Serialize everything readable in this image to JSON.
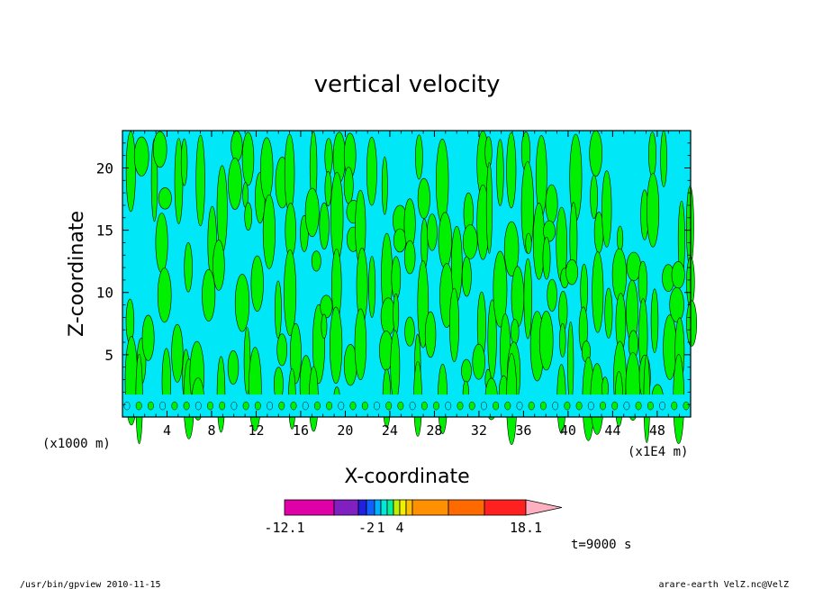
{
  "chart_data": {
    "type": "heatmap",
    "title": "vertical velocity",
    "xlabel": "X-coordinate",
    "ylabel": "Z-coordinate",
    "x_unit_left": "(x1000 m)",
    "x_unit_right": "(x1E4 m)",
    "xlim": [
      0,
      51
    ],
    "ylim": [
      0,
      23
    ],
    "x_ticks": [
      4,
      8,
      12,
      16,
      20,
      24,
      28,
      32,
      36,
      40,
      44,
      48
    ],
    "y_ticks": [
      5,
      10,
      15,
      20
    ],
    "colorbar": {
      "colors": [
        "#e000a8",
        "#8020c0",
        "#2020e0",
        "#1060ff",
        "#00b0ff",
        "#00e8d8",
        "#00f0a0",
        "#c0f000",
        "#f0f000",
        "#ffc000",
        "#ff9000",
        "#ff6a00",
        "#ff2020",
        "#ff8080",
        "#ffb0c0"
      ],
      "tick_labels": [
        {
          "text": "-12.1",
          "value": -12.1
        },
        {
          "text": "-2",
          "value": -2
        },
        {
          "text": "1",
          "value": 1
        },
        {
          "text": "4",
          "value": 4
        },
        {
          "text": "18.1",
          "value": 18.1
        }
      ]
    },
    "field_colors": {
      "positive": "#00f000",
      "negative": "#00e8f8",
      "contour": "#000000"
    },
    "time_label": "t=9000 s"
  },
  "footer": {
    "left": "/usr/bin/gpview  2010-11-15",
    "right": "arare-earth_VelZ.nc@VelZ"
  }
}
